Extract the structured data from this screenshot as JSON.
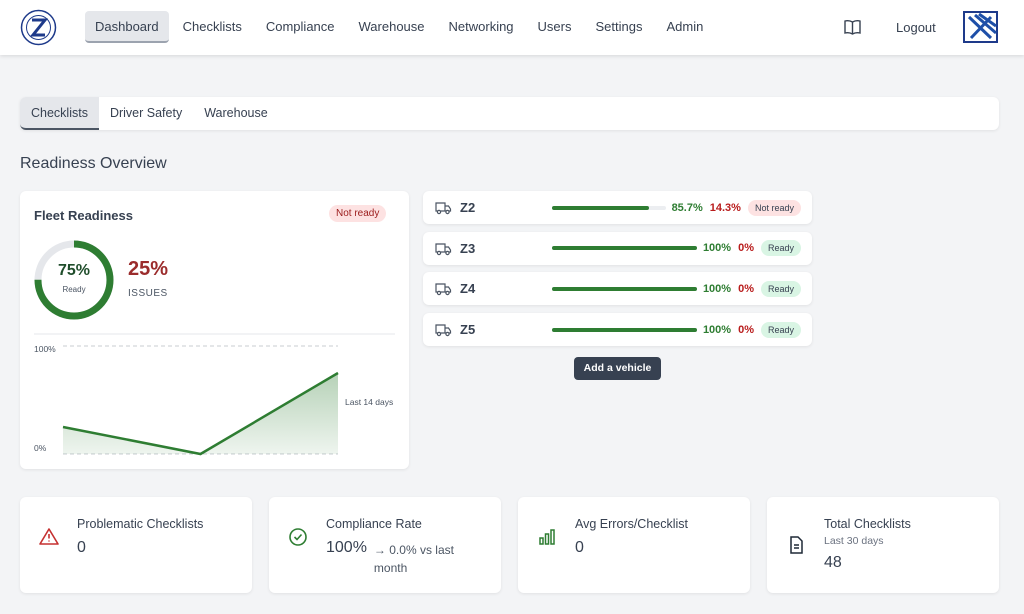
{
  "nav": {
    "items": [
      "Dashboard",
      "Checklists",
      "Compliance",
      "Warehouse",
      "Networking",
      "Users",
      "Settings",
      "Admin"
    ],
    "logout": "Logout"
  },
  "tabs": [
    "Checklists",
    "Driver Safety",
    "Warehouse"
  ],
  "section_title": "Readiness Overview",
  "fleet": {
    "title": "Fleet Readiness",
    "status": "Not ready",
    "status_color": "#fde2e2",
    "ready": {
      "value": 75,
      "label": "75%"
    },
    "ready_caption": "Ready",
    "issues": "25%",
    "issues_caption": "ISSUES",
    "chart": {
      "type": "area",
      "ylim": [
        0,
        100
      ],
      "yticks": [
        {
          "value": 0,
          "label": "0%"
        },
        {
          "value": 100,
          "label": "100%"
        }
      ],
      "values": [
        25,
        0,
        75
      ],
      "color": "#2e7d32",
      "note": "Last 14 days"
    }
  },
  "vehicles": [
    {
      "name": "Z2",
      "progress": {
        "value": 85.7,
        "label": "85.7%"
      },
      "issues": "14.3%",
      "status": "Not ready",
      "status_color": "#fde2e2"
    },
    {
      "name": "Z3",
      "progress": {
        "value": 100,
        "label": "100%"
      },
      "issues": "0%",
      "status": "Ready",
      "status_color": "#d9f5e4"
    },
    {
      "name": "Z4",
      "progress": {
        "value": 100,
        "label": "100%"
      },
      "issues": "0%",
      "status": "Ready",
      "status_color": "#d9f5e4"
    },
    {
      "name": "Z5",
      "progress": {
        "value": 100,
        "label": "100%"
      },
      "issues": "0%",
      "status": "Ready",
      "status_color": "#d9f5e4"
    }
  ],
  "add_button": "Add a vehicle",
  "stats": [
    {
      "title": "Problematic Checklists",
      "value": "0"
    },
    {
      "title": "Compliance Rate",
      "value": "100%",
      "change": "→ 0.0% vs last month"
    },
    {
      "title": "Avg Errors/Checklist",
      "value": "0"
    },
    {
      "title": "Total Checklists",
      "subtitle": "Last 30 days",
      "value": "48"
    }
  ]
}
